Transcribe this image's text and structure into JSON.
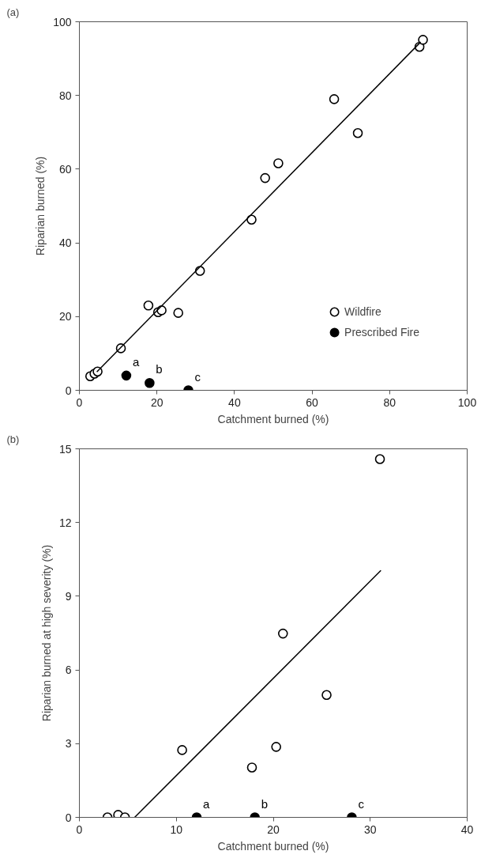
{
  "chart_data": [
    {
      "type": "scatter",
      "title": "(a)",
      "xlabel": "Catchment burned (%)",
      "ylabel": "Riparian burned (%)",
      "xlim": [
        0,
        100
      ],
      "ylim": [
        0,
        100
      ],
      "xticks": [
        0,
        20,
        40,
        60,
        80,
        100
      ],
      "yticks": [
        0,
        20,
        40,
        60,
        80,
        100
      ],
      "grid": false,
      "legend": "bottom right",
      "series": [
        {
          "name": "Wildfire",
          "color": "#ffffff",
          "marker": "circle",
          "x": [
            2.8,
            3.9,
            4.7,
            10.7,
            17.8,
            20.3,
            21.2,
            25.5,
            31.1,
            44.4,
            47.9,
            51.3,
            65.7,
            71.8,
            87.7,
            88.6
          ],
          "values": [
            3.8,
            4.5,
            5.1,
            11.4,
            23.0,
            21.2,
            21.7,
            21.0,
            32.4,
            46.3,
            57.6,
            61.6,
            79.0,
            69.8,
            93.2,
            95.1
          ]
        },
        {
          "name": "Prescribed Fire",
          "color": "#000000",
          "marker": "circle",
          "x": [
            12.1,
            18.1,
            28.1
          ],
          "values": [
            4.0,
            2.0,
            0
          ]
        },
        {
          "type": "line",
          "color": "#000000",
          "marker": "none",
          "x": [
            4.5,
            88
          ],
          "values": [
            5.0,
            94.5
          ]
        }
      ],
      "annotations": [
        {
          "text": "a",
          "x": 12.1,
          "y": 4.0
        },
        {
          "text": "b",
          "x": 18.1,
          "y": 2.0
        },
        {
          "text": "c",
          "x": 28.1,
          "y": 0
        }
      ]
    },
    {
      "type": "scatter",
      "title": "(b)",
      "xlabel": "Catchment burned (%)",
      "ylabel": "Riparian burned at high severity (%)",
      "xlim": [
        0,
        40
      ],
      "ylim": [
        0,
        15
      ],
      "xticks": [
        0,
        10,
        20,
        30,
        40
      ],
      "yticks": [
        0,
        3,
        6,
        9,
        12,
        15
      ],
      "grid": false,
      "series": [
        {
          "color": "#ffffff",
          "marker": "circle",
          "x": [
            2.9,
            4.0,
            4.7,
            10.6,
            17.8,
            20.3,
            21.0,
            25.5,
            31.0
          ],
          "values": [
            0,
            0.1,
            0,
            2.74,
            2.03,
            2.87,
            7.48,
            4.98,
            14.58
          ]
        },
        {
          "color": "#000000",
          "marker": "circle",
          "x": [
            12.1,
            18.1,
            28.1
          ],
          "values": [
            0,
            0,
            0
          ]
        },
        {
          "type": "line",
          "color": "#000000",
          "marker": "none",
          "x": [
            5.7,
            31.1
          ],
          "values": [
            0,
            10.05
          ]
        }
      ],
      "annotations": [
        {
          "text": "a",
          "x": 12.1,
          "y": 0
        },
        {
          "text": "b",
          "x": 18.1,
          "y": 0
        },
        {
          "text": "c",
          "x": 28.1,
          "y": 0
        }
      ]
    }
  ]
}
